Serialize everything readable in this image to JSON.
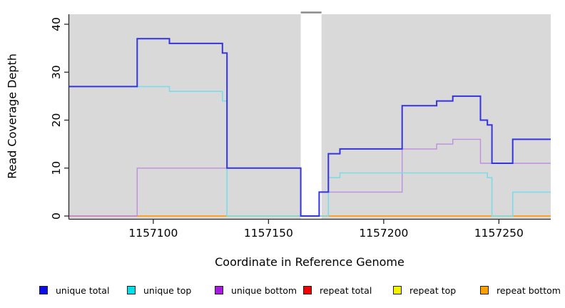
{
  "chart_data": {
    "type": "line",
    "step": true,
    "title": "",
    "xlabel": "Coordinate in Reference Genome",
    "ylabel": "Read Coverage Depth",
    "xlim": [
      1157063.5,
      1157272.5
    ],
    "ylim": [
      0,
      42
    ],
    "xticks": [
      1157100,
      1157150,
      1157200,
      1157250
    ],
    "yticks": [
      0,
      10,
      20,
      30,
      40
    ],
    "grid": false,
    "plot_background": "#d9d9d9",
    "gap_region": {
      "start": 1157164,
      "end": 1157173,
      "fill": "#ffffff",
      "cap_color": "#8a8a8a"
    },
    "series": [
      {
        "name": "repeat total",
        "color": "#dd5580",
        "draw_order": 1,
        "points": [
          [
            1157063.5,
            0
          ],
          [
            1157272.5,
            0
          ]
        ]
      },
      {
        "name": "repeat top",
        "color": "#eeee00",
        "draw_order": 2,
        "points": [
          [
            1157063.5,
            0
          ],
          [
            1157272.5,
            0
          ]
        ]
      },
      {
        "name": "repeat bottom",
        "color": "#ff9e1e",
        "draw_order": 3,
        "points": [
          [
            1157063.5,
            0
          ],
          [
            1157272.5,
            0
          ]
        ]
      },
      {
        "name": "unique bottom",
        "color": "#bf8ee0",
        "draw_order": 4,
        "points": [
          [
            1157063.5,
            0
          ],
          [
            1157093,
            10
          ],
          [
            1157164,
            0
          ],
          [
            1157172,
            5
          ],
          [
            1157208,
            14
          ],
          [
            1157223,
            15
          ],
          [
            1157230,
            16
          ],
          [
            1157242,
            11
          ],
          [
            1157272.5,
            11
          ]
        ]
      },
      {
        "name": "unique top",
        "color": "#7edce8",
        "draw_order": 5,
        "points": [
          [
            1157063.5,
            27
          ],
          [
            1157107,
            26
          ],
          [
            1157130,
            24
          ],
          [
            1157132,
            0
          ],
          [
            1157176,
            8
          ],
          [
            1157181,
            9
          ],
          [
            1157245,
            8
          ],
          [
            1157247,
            0
          ],
          [
            1157256,
            5
          ],
          [
            1157272.5,
            5
          ]
        ]
      },
      {
        "name": "unique total",
        "color": "#3434e0",
        "draw_order": 6,
        "points": [
          [
            1157063.5,
            27
          ],
          [
            1157093,
            37
          ],
          [
            1157107,
            36
          ],
          [
            1157130,
            34
          ],
          [
            1157132,
            10
          ],
          [
            1157164,
            0
          ],
          [
            1157172,
            5
          ],
          [
            1157176,
            13
          ],
          [
            1157181,
            14
          ],
          [
            1157208,
            23
          ],
          [
            1157223,
            24
          ],
          [
            1157230,
            25
          ],
          [
            1157242,
            20
          ],
          [
            1157245,
            19
          ],
          [
            1157247,
            11
          ],
          [
            1157256,
            16
          ],
          [
            1157272.5,
            16
          ]
        ]
      }
    ],
    "zero_line_segments": [
      {
        "from": 1157063.5,
        "to": 1157093,
        "color": "#dd5580"
      },
      {
        "from": 1157093,
        "to": 1157132,
        "color": "#ff9e1e"
      },
      {
        "from": 1157132,
        "to": 1157164,
        "color": "#a5d6a5"
      },
      {
        "from": 1157173,
        "to": 1157247,
        "color": "#ff9e1e"
      },
      {
        "from": 1157247,
        "to": 1157256,
        "color": "#a5d6a5"
      },
      {
        "from": 1157256,
        "to": 1157272.5,
        "color": "#ff9e1e"
      }
    ],
    "legend": {
      "position": "bottom",
      "items": [
        {
          "label": "unique total",
          "color": "#0d0de8"
        },
        {
          "label": "unique top",
          "color": "#00e0e8"
        },
        {
          "label": "unique bottom",
          "color": "#a61ae0"
        },
        {
          "label": "repeat total",
          "color": "#f00000"
        },
        {
          "label": "repeat top",
          "color": "#f2f200"
        },
        {
          "label": "repeat bottom",
          "color": "#ffa000"
        }
      ]
    }
  }
}
